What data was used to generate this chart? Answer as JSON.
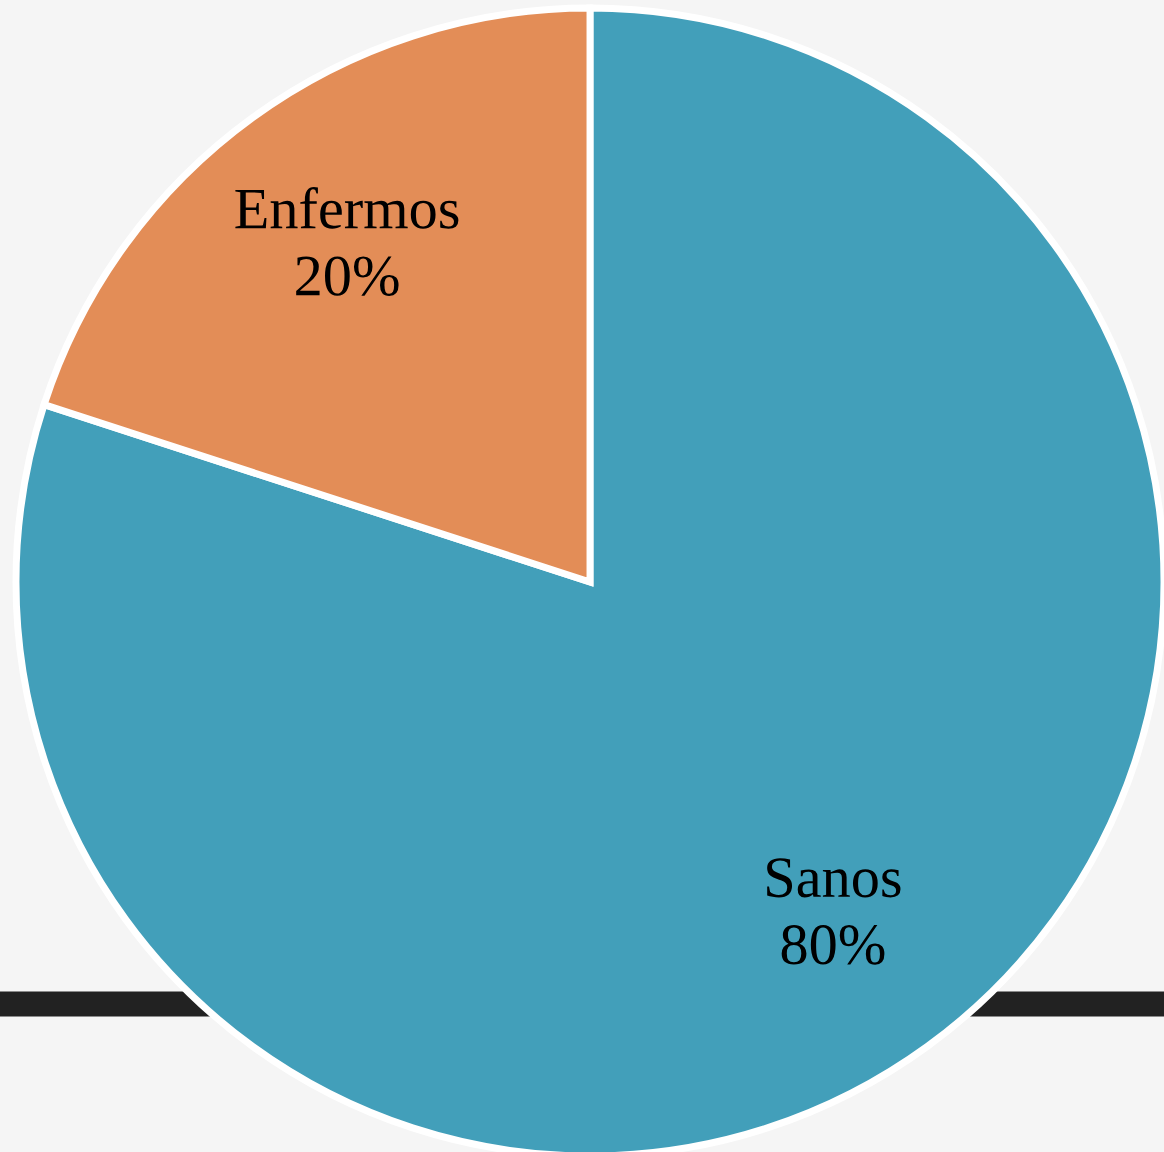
{
  "chart_data": {
    "type": "pie",
    "categories": [
      "Sanos",
      "Enfermos"
    ],
    "values": [
      80,
      20
    ],
    "colors": [
      "#429fba",
      "#e38d57"
    ],
    "value_labels": [
      "80%",
      "20%"
    ]
  }
}
